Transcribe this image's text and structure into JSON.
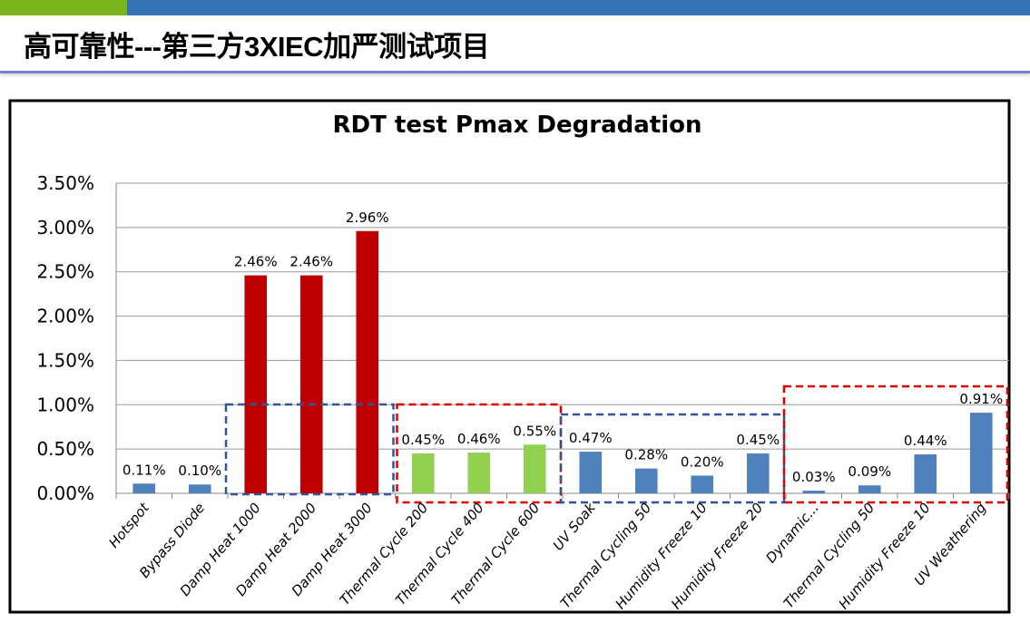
{
  "slide": {
    "title": "高可靠性---第三方3XIEC加严测试项目"
  },
  "colors": {
    "green_strip": "#7ab51d",
    "blue_strip": "#3473b5",
    "red_bar": "#c00000",
    "green_bar": "#92d050",
    "blue_bar": "#4f81bd"
  },
  "chart_data": {
    "type": "bar",
    "title": "RDT test Pmax Degradation",
    "xlabel": "",
    "ylabel": "",
    "ylim": [
      0,
      3.5
    ],
    "yticks": [
      "0.00%",
      "0.50%",
      "1.00%",
      "1.50%",
      "2.00%",
      "2.50%",
      "3.00%",
      "3.50%"
    ],
    "grid": true,
    "categories": [
      "Hotspot",
      "Bypass Diode",
      "Damp Heat 1000",
      "Damp Heat 2000",
      "Damp Heat 3000",
      "Thermal Cycle 200",
      "Thermal Cycle 400",
      "Thermal Cycle 600",
      "UV Soak",
      "Thermal Cycling 50",
      "Humidity Freeze 10",
      "Humidity Freeze 20",
      "Dynamic...",
      "Thermal Cycling 50",
      "Humidity Freeze 10",
      "UV Weathering"
    ],
    "values": [
      0.11,
      0.1,
      2.46,
      2.46,
      2.96,
      0.45,
      0.46,
      0.55,
      0.47,
      0.28,
      0.2,
      0.45,
      0.03,
      0.09,
      0.44,
      0.91
    ],
    "labels": [
      "0.11%",
      "0.10%",
      "2.46%",
      "2.46%",
      "2.96%",
      "0.45%",
      "0.46%",
      "0.55%",
      "0.47%",
      "0.28%",
      "0.20%",
      "0.45%",
      "0.03%",
      "0.09%",
      "0.44%",
      "0.91%"
    ],
    "bar_colors": [
      "blue",
      "blue",
      "red",
      "red",
      "red",
      "green",
      "green",
      "green",
      "blue",
      "blue",
      "blue",
      "blue",
      "blue",
      "blue",
      "blue",
      "blue"
    ],
    "group_boxes": [
      {
        "from": 2,
        "to": 4,
        "color": "blue"
      },
      {
        "from": 5,
        "to": 7,
        "color": "red"
      },
      {
        "from": 8,
        "to": 11,
        "color": "blue"
      },
      {
        "from": 12,
        "to": 15,
        "color": "red"
      }
    ]
  }
}
